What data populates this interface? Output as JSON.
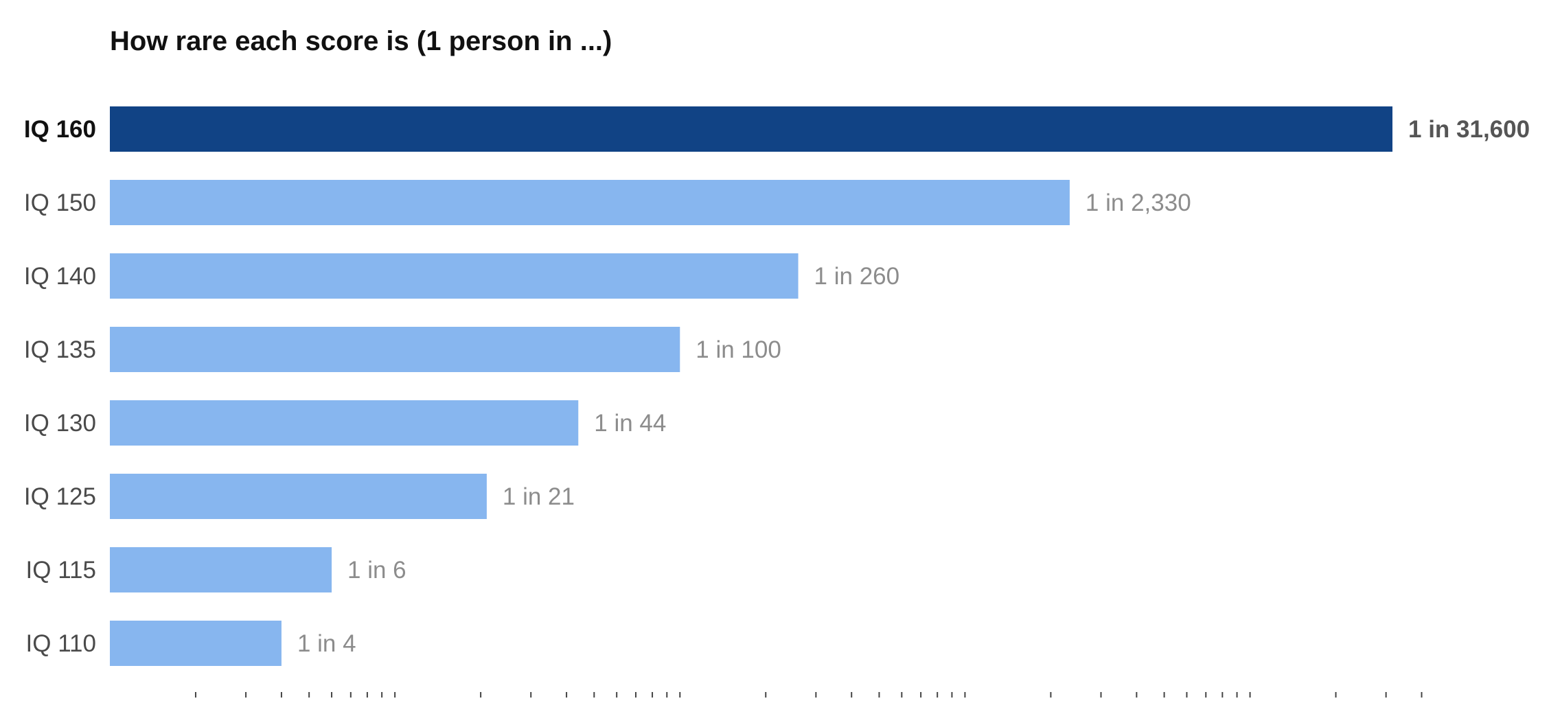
{
  "chart_data": {
    "type": "bar",
    "orientation": "horizontal",
    "title": "How rare each score is (1 person in ...)",
    "xlabel": "",
    "ylabel": "",
    "x_scale": "log",
    "xlim": [
      1,
      40000
    ],
    "grid": false,
    "legend": "none",
    "categories": [
      "IQ 160",
      "IQ 150",
      "IQ 140",
      "IQ 135",
      "IQ 130",
      "IQ 125",
      "IQ 115",
      "IQ 110"
    ],
    "values": [
      31600,
      2330,
      260,
      100,
      44,
      21,
      6,
      4
    ],
    "value_labels": [
      "1 in 31,600",
      "1 in 2,330",
      "1 in 260",
      "1 in 100",
      "1 in 44",
      "1 in 21",
      "1 in 6",
      "1 in 4"
    ],
    "highlight": "IQ 160",
    "colors": {
      "highlight_bar": "#114385",
      "bar": "#87b6ef"
    }
  }
}
